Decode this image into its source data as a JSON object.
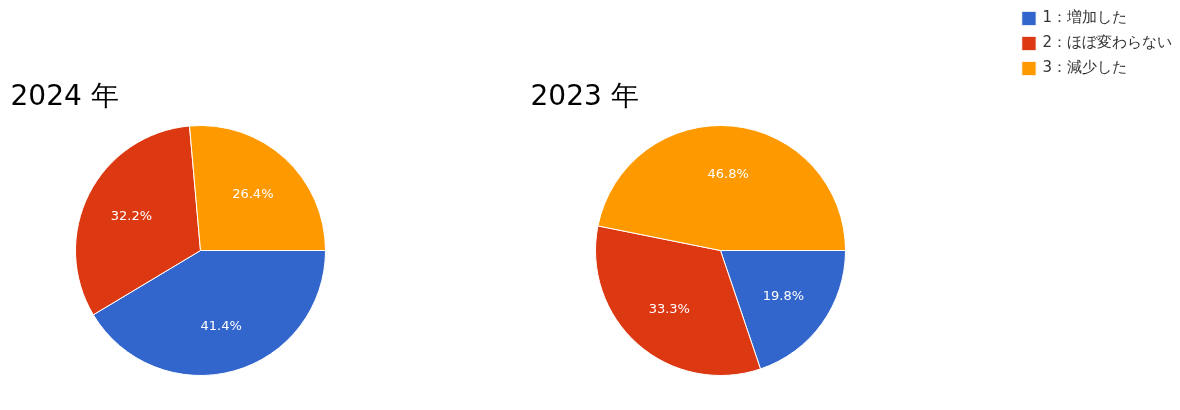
{
  "chart_data": [
    {
      "type": "pie",
      "title": "2024 年",
      "categories": [
        "1：増加した",
        "2：ほぼ変わらない",
        "3：減少した"
      ],
      "values": [
        41.4,
        32.2,
        26.4
      ],
      "colors": [
        "#3366cc",
        "#dc3912",
        "#ff9900"
      ],
      "value_labels": [
        "41.4%",
        "32.2%",
        "26.4%"
      ],
      "legend": "top right"
    },
    {
      "type": "pie",
      "title": "2023 年",
      "categories": [
        null,
        null,
        null
      ],
      "values": [
        19.8,
        33.3,
        46.8
      ],
      "colors": [
        "#3366cc",
        "#dc3912",
        "#ff9900"
      ],
      "value_labels": [
        "19.8%",
        "33.3%",
        "46.8%"
      ]
    }
  ]
}
